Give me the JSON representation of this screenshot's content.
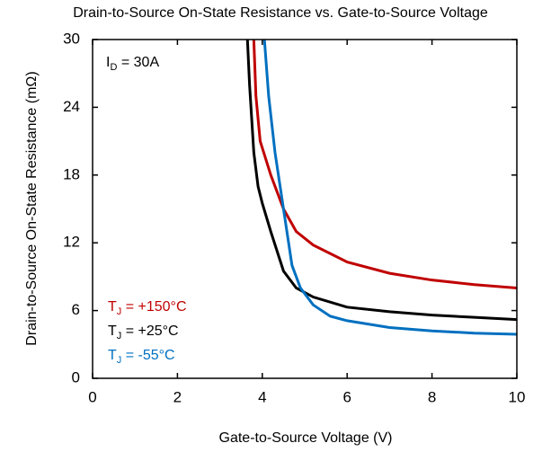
{
  "chart_data": {
    "type": "line",
    "title": "Drain-to-Source On-State Resistance vs. Gate-to-Source Voltage",
    "x_label": "Gate-to-Source Voltage (V)",
    "y_label": "Drain-to-Source On-State Resistance (mΩ)",
    "annotation": "ID = 30A",
    "xlim": [
      0,
      10
    ],
    "xticks": [
      0,
      2,
      4,
      6,
      8,
      10
    ],
    "ylim": [
      0,
      30
    ],
    "yticks": [
      0,
      6,
      12,
      18,
      24,
      30
    ],
    "grid": false,
    "series": [
      {
        "name": "TJ = +150°C",
        "color": "#c00000",
        "x": [
          3.8,
          3.85,
          3.95,
          4.2,
          4.5,
          4.8,
          5.2,
          6,
          7,
          8,
          9,
          10
        ],
        "values": [
          30,
          25,
          21,
          18,
          15,
          13,
          11.8,
          10.3,
          9.3,
          8.7,
          8.3,
          8
        ]
      },
      {
        "name": "TJ = +25°C",
        "color": "#000000",
        "x": [
          3.65,
          3.7,
          3.8,
          3.9,
          4,
          4.2,
          4.5,
          4.8,
          5.2,
          6,
          7,
          8,
          9,
          10
        ],
        "values": [
          30,
          26,
          20,
          17,
          15.5,
          13,
          9.5,
          8,
          7.2,
          6.3,
          5.9,
          5.6,
          5.4,
          5.2
        ]
      },
      {
        "name": "TJ = -55°C",
        "color": "#0070c0",
        "x": [
          4.05,
          4.15,
          4.3,
          4.5,
          4.7,
          4.9,
          5.2,
          5.6,
          6,
          7,
          8,
          9,
          10
        ],
        "values": [
          30,
          25,
          20,
          15,
          10,
          8,
          6.5,
          5.5,
          5.1,
          4.5,
          4.2,
          4,
          3.9
        ]
      }
    ]
  }
}
